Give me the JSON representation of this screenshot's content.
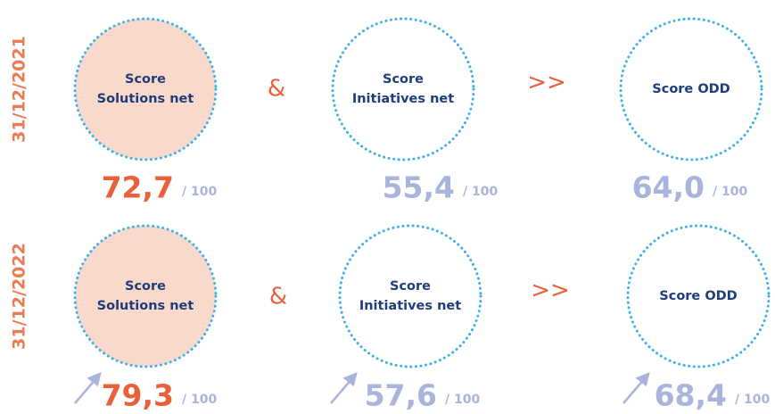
{
  "rows": [
    {
      "date": "31/12/2021",
      "operators": [
        "&",
        ">>"
      ],
      "items": [
        {
          "label": [
            "Score",
            "Solutions net"
          ],
          "score": "72,7",
          "max": "/ 100"
        },
        {
          "label": [
            "Score",
            "Initiatives net"
          ],
          "score": "55,4",
          "max": "/ 100"
        },
        {
          "label": [
            "Score ODD"
          ],
          "score": "64,0",
          "max": "/ 100"
        }
      ]
    },
    {
      "date": "31/12/2022",
      "operators": [
        "&",
        ">>"
      ],
      "items": [
        {
          "label": [
            "Score",
            "Solutions net"
          ],
          "score": "79,3",
          "max": "/ 100"
        },
        {
          "label": [
            "Score",
            "Initiatives net"
          ],
          "score": "57,6",
          "max": "/ 100"
        },
        {
          "label": [
            "Score ODD"
          ],
          "score": "68,4",
          "max": "/ 100"
        }
      ]
    }
  ]
}
